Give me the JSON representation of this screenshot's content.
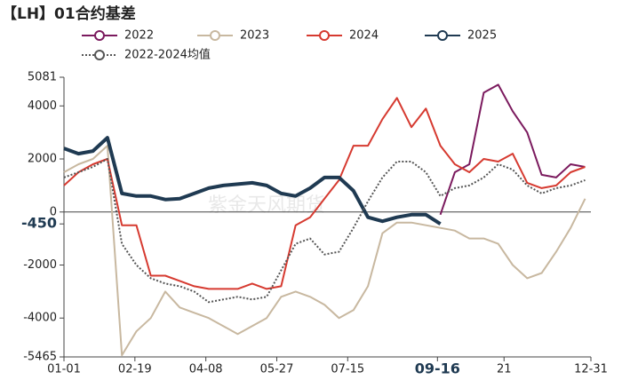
{
  "chart_data": {
    "type": "line",
    "title": "【LH】01合约基差",
    "watermark": "紫金天风期货",
    "x": [
      0,
      10,
      20,
      30,
      40,
      50,
      60,
      70,
      80,
      90,
      100,
      110,
      120,
      130,
      140,
      150,
      160,
      170,
      180,
      190,
      200,
      210,
      220,
      230,
      240,
      250,
      260,
      270,
      280,
      290,
      300,
      310,
      320,
      330,
      340,
      350,
      360
    ],
    "xlim": [
      0,
      364
    ],
    "xticks": [
      {
        "value": 0,
        "label": "01-01"
      },
      {
        "value": 49,
        "label": "02-19"
      },
      {
        "value": 98,
        "label": "04-08"
      },
      {
        "value": 147,
        "label": "05-27"
      },
      {
        "value": 196,
        "label": "07-15"
      },
      {
        "value": 258,
        "label": "09-16",
        "emphasis": true
      },
      {
        "value": 304,
        "label": "21"
      },
      {
        "value": 364,
        "label": "12-31"
      }
    ],
    "ylim": [
      -5465,
      5081
    ],
    "yticks": [
      5081,
      4000,
      2000,
      0,
      {
        "value": -450,
        "label": "-450",
        "emphasis": true
      },
      -2000,
      -4000,
      -5465
    ],
    "series": [
      {
        "name": "2022",
        "color": "#7b1a5e",
        "dash": false,
        "values": [
          null,
          null,
          null,
          null,
          null,
          null,
          null,
          null,
          null,
          null,
          null,
          null,
          null,
          null,
          null,
          null,
          null,
          null,
          null,
          null,
          null,
          null,
          null,
          null,
          null,
          null,
          -100,
          1500,
          1800,
          4500,
          4800,
          3800,
          3000,
          1400,
          1300,
          1800,
          1700
        ]
      },
      {
        "name": "2023",
        "color": "#c8b8a0",
        "dash": false,
        "values": [
          1500,
          1800,
          2000,
          2500,
          -5400,
          -4500,
          -4000,
          -3000,
          -3600,
          -3800,
          -4000,
          -4300,
          -4600,
          -4300,
          -4000,
          -3200,
          -3000,
          -3200,
          -3500,
          -4000,
          -3700,
          -2800,
          -800,
          -400,
          -400,
          -500,
          -600,
          -700,
          -1000,
          -1000,
          -1200,
          -2000,
          -2500,
          -2300,
          -1500,
          -600,
          500
        ]
      },
      {
        "name": "2024",
        "color": "#d63a30",
        "dash": false,
        "values": [
          1000,
          1500,
          1800,
          2000,
          -500,
          -500,
          -2400,
          -2400,
          -2600,
          -2800,
          -2900,
          -2900,
          -2900,
          -2700,
          -2900,
          -2800,
          -500,
          -200,
          500,
          1200,
          2500,
          2500,
          3500,
          4300,
          3200,
          3900,
          2500,
          1800,
          1500,
          2000,
          1900,
          2200,
          1100,
          900,
          1000,
          1500,
          1700
        ]
      },
      {
        "name": "2025",
        "color": "#1f3a52",
        "dash": false,
        "values": [
          2400,
          2200,
          2300,
          2800,
          700,
          600,
          600,
          470,
          500,
          700,
          900,
          1000,
          1050,
          1100,
          1000,
          700,
          600,
          900,
          1300,
          1300,
          800,
          -200,
          -350,
          -200,
          -100,
          -100,
          -450,
          null,
          null,
          null,
          null,
          null,
          null,
          null,
          null,
          null,
          null
        ]
      },
      {
        "name": "2022-2024均值",
        "color": "#555555",
        "dash": true,
        "values": [
          1300,
          1500,
          1700,
          2000,
          -1200,
          -2000,
          -2500,
          -2700,
          -2800,
          -3000,
          -3400,
          -3300,
          -3200,
          -3300,
          -3200,
          -2200,
          -1200,
          -1000,
          -1600,
          -1500,
          -600,
          400,
          1300,
          1900,
          1900,
          1500,
          600,
          900,
          1000,
          1300,
          1800,
          1600,
          1000,
          700,
          900,
          1000,
          1200
        ]
      }
    ]
  }
}
